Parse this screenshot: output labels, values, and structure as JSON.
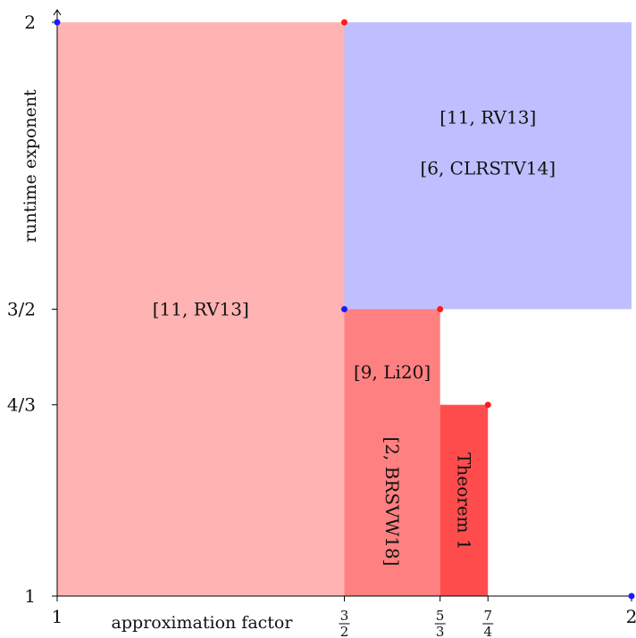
{
  "chart_data": {
    "type": "area",
    "xlabel": "approximation factor",
    "ylabel": "runtime exponent",
    "xlim": [
      1,
      2
    ],
    "ylim": [
      1,
      2
    ],
    "x_ticks": [
      {
        "value": 1,
        "label": "1"
      },
      {
        "value": 1.5,
        "num": "3",
        "den": "2"
      },
      {
        "value": 1.6667,
        "num": "5",
        "den": "3"
      },
      {
        "value": 1.75,
        "num": "7",
        "den": "4"
      },
      {
        "value": 2,
        "label": "2"
      }
    ],
    "y_ticks": [
      {
        "value": 1,
        "label": "1"
      },
      {
        "value": 1.3333,
        "label": "4/3"
      },
      {
        "value": 1.5,
        "label": "3/2"
      },
      {
        "value": 2,
        "label": "2"
      }
    ],
    "regions": [
      {
        "x0": 1,
        "x1": 1.5,
        "y0": 1,
        "y1": 2,
        "color": "#ffb3b3",
        "labels": [
          "[11, RV13]"
        ],
        "label_at": [
          1.25,
          1.5
        ],
        "rotate": false
      },
      {
        "x0": 1.5,
        "x1": 2,
        "y0": 1.5,
        "y1": 2,
        "color": "#bfbfff",
        "labels": [
          "[11, RV13]",
          "[6, CLRSTV14]"
        ],
        "label_at": [
          1.75,
          1.79
        ],
        "rotate": false
      },
      {
        "x0": 1.5,
        "x1": 1.6667,
        "y0": 1,
        "y1": 1.5,
        "color": "#ff8080",
        "labels": [
          "[9, Li20]"
        ],
        "label_at": [
          1.5833,
          1.39
        ],
        "rotate": false
      },
      {
        "x0": 1.5,
        "x1": 1.6667,
        "y0": 1,
        "y1": 1.5,
        "color": "none",
        "labels": [
          "[2, BRSVW18]"
        ],
        "label_at": [
          1.5833,
          1.165
        ],
        "rotate": true
      },
      {
        "x0": 1.6667,
        "x1": 1.75,
        "y0": 1,
        "y1": 1.3333,
        "color": "#ff4d4d",
        "labels": [
          "Theorem 1"
        ],
        "label_at": [
          1.7083,
          1.165
        ],
        "rotate": true
      }
    ],
    "points": [
      {
        "x": 1,
        "y": 2,
        "color": "#1a1aff"
      },
      {
        "x": 1.5,
        "y": 2,
        "color": "#ff1a1a"
      },
      {
        "x": 1.5,
        "y": 1.5,
        "color": "#1a1aff"
      },
      {
        "x": 1.6667,
        "y": 1.5,
        "color": "#ff1a1a"
      },
      {
        "x": 1.75,
        "y": 1.3333,
        "color": "#ff1a1a"
      },
      {
        "x": 2,
        "y": 1,
        "color": "#1a1aff"
      }
    ]
  }
}
